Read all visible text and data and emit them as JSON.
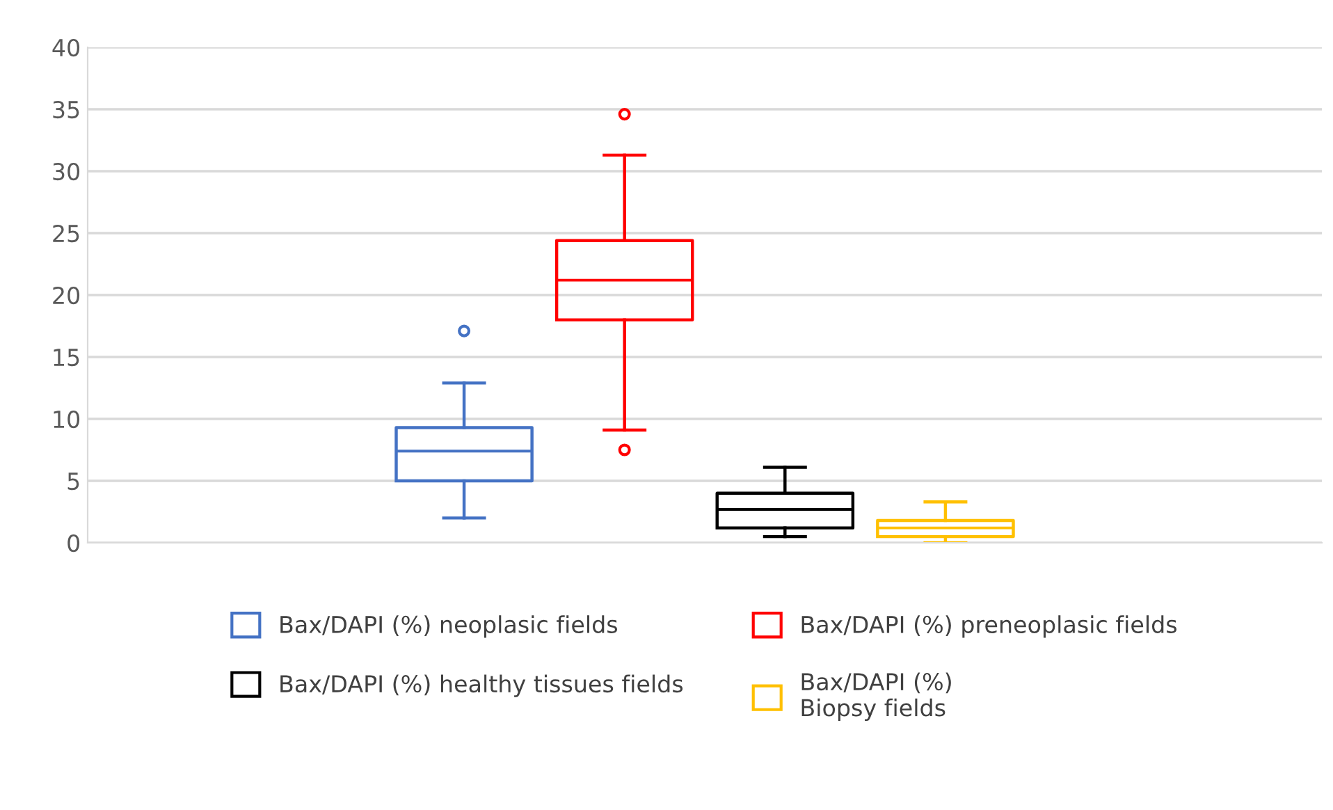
{
  "chart_data": {
    "type": "box",
    "categories": [
      null
    ],
    "ylim": [
      0,
      40
    ],
    "yticks": [
      0,
      5,
      10,
      15,
      20,
      25,
      30,
      35,
      40
    ],
    "grid": "y",
    "legend": "bottom",
    "marker": "circle",
    "series": [
      {
        "name": "Bax/DAPI (%) neoplasic fields",
        "color": "#4472c4",
        "boxes": [
          {
            "low": 2.0,
            "q1": 5.0,
            "median": 7.4,
            "q3": 9.3,
            "high": 12.9,
            "outliers": [
              17.1
            ]
          }
        ]
      },
      {
        "name": "Bax/DAPI (%) preneoplasic fields",
        "color": "#ff0000",
        "boxes": [
          {
            "low": 9.1,
            "q1": 18.0,
            "median": 21.2,
            "q3": 24.4,
            "high": 31.3,
            "outliers": [
              34.6,
              7.5
            ]
          }
        ]
      },
      {
        "name": "Bax/DAPI (%) healthy tissues fields",
        "color": "#000000",
        "boxes": [
          {
            "low": 0.5,
            "q1": 1.2,
            "median": 2.7,
            "q3": 4.0,
            "high": 6.1
          }
        ]
      },
      {
        "name": "Bax/DAPI (%)\nBiopsy fields",
        "color": "#ffc000",
        "boxes": [
          {
            "low": 0.0,
            "q1": 0.5,
            "median": 1.2,
            "q3": 1.8,
            "high": 3.3
          }
        ]
      }
    ]
  }
}
